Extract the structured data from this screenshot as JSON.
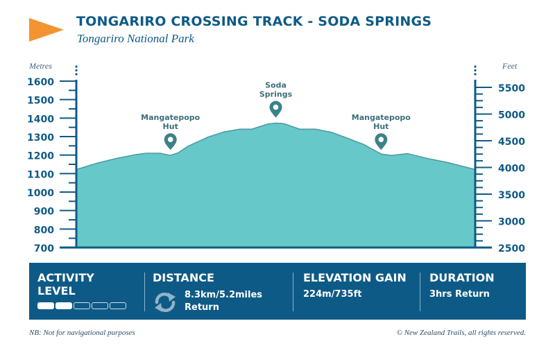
{
  "title": "TONGARIRO CROSSING TRACK - SODA SPRINGS",
  "subtitle": "Tongariro National Park",
  "colors": {
    "brand": "#0e5a86",
    "fill": "#67c8c9",
    "arrow": "#f29431",
    "marker": "#3a8288"
  },
  "chart_data": {
    "type": "area",
    "ylabel_left": "Metres",
    "ylabel_right": "Feet",
    "left_axis": {
      "min": 700,
      "max": 1600,
      "ticks": [
        700,
        800,
        900,
        1000,
        1100,
        1200,
        1300,
        1400,
        1500,
        1600
      ]
    },
    "right_axis": {
      "min": 2500,
      "max": 5500,
      "ticks": [
        2500,
        3000,
        3500,
        4000,
        4500,
        5000,
        5500
      ]
    },
    "x_range": [
      0,
      1
    ],
    "profile": {
      "x": [
        0.0,
        0.05,
        0.1,
        0.15,
        0.175,
        0.21,
        0.235,
        0.255,
        0.28,
        0.33,
        0.37,
        0.41,
        0.44,
        0.48,
        0.5,
        0.52,
        0.56,
        0.6,
        0.64,
        0.68,
        0.72,
        0.745,
        0.765,
        0.79,
        0.83,
        0.88,
        0.93,
        1.0
      ],
      "elevation_m": [
        1122,
        1155,
        1182,
        1203,
        1210,
        1210,
        1198,
        1212,
        1248,
        1297,
        1325,
        1340,
        1340,
        1368,
        1373,
        1370,
        1340,
        1340,
        1323,
        1291,
        1258,
        1228,
        1205,
        1198,
        1208,
        1182,
        1160,
        1122
      ]
    },
    "landmarks": [
      {
        "label": "Mangatepopo Hut",
        "x": 0.236,
        "elevation_m": 1198
      },
      {
        "label": "Soda Springs",
        "x": 0.5,
        "elevation_m": 1373
      },
      {
        "label": "Mangatepopo Hut",
        "x": 0.764,
        "elevation_m": 1198
      }
    ]
  },
  "activity": {
    "heading": "ACTIVITY\nLEVEL",
    "level": 2,
    "max_level": 5
  },
  "distance": {
    "heading": "DISTANCE",
    "value": "8.3km/5.2miles",
    "sub": "Return",
    "icon": "loop-arrows-icon"
  },
  "elevation": {
    "heading": "ELEVATION GAIN",
    "value": "224m/735ft"
  },
  "duration": {
    "heading": "DURATION",
    "value": "3hrs Return"
  },
  "footer": {
    "note": "NB: Not for navigational purposes",
    "copyright": "© New Zealand Trails, all rights reserved."
  }
}
